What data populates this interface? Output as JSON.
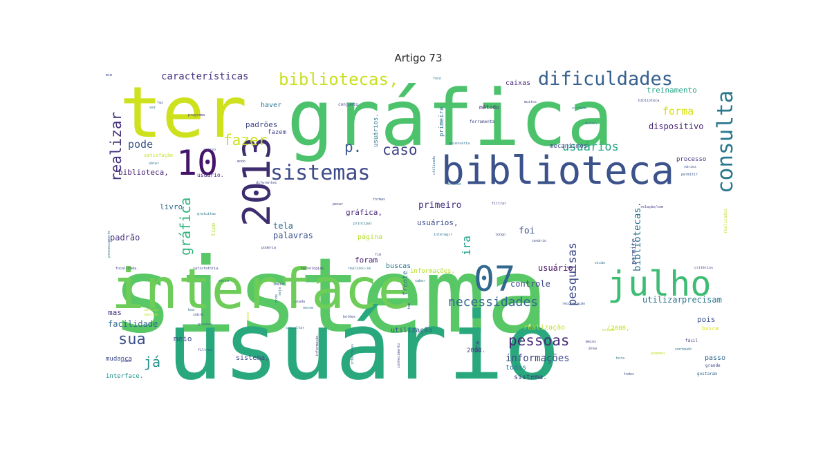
{
  "title": "Artigo 73",
  "colors": {
    "background": "#ffffff",
    "title": "#222222",
    "palette": "viridis"
  },
  "words": [
    {
      "text": "sistema",
      "weight": 1.0,
      "color": "#58c765",
      "vertical": false
    },
    {
      "text": "usuário",
      "weight": 0.95,
      "color": "#29a87d",
      "vertical": false
    },
    {
      "text": "gráfica",
      "weight": 0.72,
      "color": "#4cc26c",
      "vertical": false
    },
    {
      "text": "ter",
      "weight": 0.6,
      "color": "#cde11d",
      "vertical": false
    },
    {
      "text": "interface",
      "weight": 0.5,
      "color": "#6ecd58",
      "vertical": false
    },
    {
      "text": "biblioteca",
      "weight": 0.4,
      "color": "#3b528b",
      "vertical": false
    },
    {
      "text": "julho",
      "weight": 0.35,
      "color": "#3dbc74",
      "vertical": false
    },
    {
      "text": "07",
      "weight": 0.33,
      "color": "#31688e",
      "vertical": false
    },
    {
      "text": "2013",
      "weight": 0.33,
      "color": "#3e2d6e",
      "vertical": true
    },
    {
      "text": "10",
      "weight": 0.32,
      "color": "#44146a",
      "vertical": false
    },
    {
      "text": "consulta",
      "weight": 0.24,
      "color": "#2a788e",
      "vertical": true
    },
    {
      "text": "sistemas",
      "weight": 0.21,
      "color": "#3e4a89",
      "vertical": false
    },
    {
      "text": "dificuldades",
      "weight": 0.2,
      "color": "#355f8d",
      "vertical": false
    },
    {
      "text": "bibliotecas,",
      "weight": 0.18,
      "color": "#c8e020",
      "vertical": false
    },
    {
      "text": "necessidades",
      "weight": 0.14,
      "color": "#31688e",
      "vertical": false
    },
    {
      "text": "fazer",
      "weight": 0.15,
      "color": "#cfe11c",
      "vertical": false
    },
    {
      "text": "realizar",
      "weight": 0.15,
      "color": "#46327e",
      "vertical": true
    },
    {
      "text": "gráfica",
      "weight": 0.14,
      "color": "#2fb47c",
      "vertical": true
    },
    {
      "text": "caso",
      "weight": 0.14,
      "color": "#414487",
      "vertical": false
    },
    {
      "text": "pessoas",
      "weight": 0.14,
      "color": "#472a7a",
      "vertical": false
    },
    {
      "text": "sua",
      "weight": 0.15,
      "color": "#3b528b",
      "vertical": false
    },
    {
      "text": "já",
      "weight": 0.13,
      "color": "#21918c",
      "vertical": false
    },
    {
      "text": "p.",
      "weight": 0.13,
      "color": "#39568c",
      "vertical": false
    },
    {
      "text": "pesquisas",
      "weight": 0.12,
      "color": "#3e4a89",
      "vertical": true
    },
    {
      "text": "usuários",
      "weight": 0.12,
      "color": "#21a585",
      "vertical": false
    },
    {
      "text": "forma",
      "weight": 0.11,
      "color": "#d8e219",
      "vertical": false
    },
    {
      "text": "pode",
      "weight": 0.11,
      "color": "#3a538b",
      "vertical": false
    },
    {
      "text": "características",
      "weight": 0.1,
      "color": "#46337f",
      "vertical": false
    },
    {
      "text": "ira",
      "weight": 0.1,
      "color": "#1f9e89",
      "vertical": true
    },
    {
      "text": "informações",
      "weight": 0.09,
      "color": "#3e4989",
      "vertical": false
    },
    {
      "text": "bibliotecas.",
      "weight": 0.08,
      "color": "#2c728e",
      "vertical": true
    },
    {
      "text": "dispositivo",
      "weight": 0.07,
      "color": "#482475",
      "vertical": false
    },
    {
      "text": "primeiro",
      "weight": 0.07,
      "color": "#46337f",
      "vertical": false
    },
    {
      "text": "usuário,",
      "weight": 0.07,
      "color": "#471063",
      "vertical": false
    },
    {
      "text": "controle",
      "weight": 0.07,
      "color": "#404688",
      "vertical": false
    },
    {
      "text": "utilizar",
      "weight": 0.07,
      "color": "#2d708e",
      "vertical": false
    },
    {
      "text": "precisam",
      "weight": 0.07,
      "color": "#2a788e",
      "vertical": false
    },
    {
      "text": "facilidade",
      "weight": 0.07,
      "color": "#31688e",
      "vertical": false
    },
    {
      "text": "padrão",
      "weight": 0.07,
      "color": "#46327e",
      "vertical": false
    },
    {
      "text": "palavras",
      "weight": 0.07,
      "color": "#3b528b",
      "vertical": false
    },
    {
      "text": "tela",
      "weight": 0.07,
      "color": "#31688e",
      "vertical": false
    },
    {
      "text": "padrões",
      "weight": 0.07,
      "color": "#404688",
      "vertical": false
    },
    {
      "text": "usuários,",
      "weight": 0.07,
      "color": "#3e4a89",
      "vertical": false
    },
    {
      "text": "gráfica,",
      "weight": 0.07,
      "color": "#482777",
      "vertical": false
    },
    {
      "text": "foi",
      "weight": 0.07,
      "color": "#3b528b",
      "vertical": false
    },
    {
      "text": "página",
      "weight": 0.06,
      "color": "#b4de2c",
      "vertical": false
    },
    {
      "text": "foram",
      "weight": 0.06,
      "color": "#482071",
      "vertical": false
    },
    {
      "text": "biblioteca,",
      "weight": 0.06,
      "color": "#482475",
      "vertical": false
    },
    {
      "text": "livro",
      "weight": 0.06,
      "color": "#31688e",
      "vertical": false
    },
    {
      "text": "sistema,",
      "weight": 0.06,
      "color": "#3e4a89",
      "vertical": false
    },
    {
      "text": "sistema.",
      "weight": 0.06,
      "color": "#46337f",
      "vertical": false
    },
    {
      "text": "meio",
      "weight": 0.06,
      "color": "#3e4a89",
      "vertical": false
    },
    {
      "text": "mas",
      "weight": 0.06,
      "color": "#46337f",
      "vertical": false
    },
    {
      "text": "pois",
      "weight": 0.06,
      "color": "#3b528b",
      "vertical": false
    },
    {
      "text": "passo",
      "weight": 0.06,
      "color": "#31688e",
      "vertical": false
    },
    {
      "text": "todas",
      "weight": 0.06,
      "color": "#2c728e",
      "vertical": false
    },
    {
      "text": "realização",
      "weight": 0.06,
      "color": "#c2df23",
      "vertical": false
    },
    {
      "text": "treinamento",
      "weight": 0.06,
      "color": "#20a486",
      "vertical": false
    },
    {
      "text": "caixas",
      "weight": 0.05,
      "color": "#472c7a",
      "vertical": false
    },
    {
      "text": "haver",
      "weight": 0.05,
      "color": "#2c728e",
      "vertical": false
    },
    {
      "text": "fazem",
      "weight": 0.05,
      "color": "#404688",
      "vertical": false
    },
    {
      "text": "mecanismos",
      "weight": 0.05,
      "color": "#3e4a89",
      "vertical": false
    },
    {
      "text": "processo",
      "weight": 0.05,
      "color": "#46337f",
      "vertical": false
    },
    {
      "text": "método",
      "weight": 0.05,
      "color": "#482677",
      "vertical": false
    },
    {
      "text": "buscas",
      "weight": 0.05,
      "color": "#2a788e",
      "vertical": false
    },
    {
      "text": "interface.",
      "weight": 0.05,
      "color": "#1f968b",
      "vertical": false
    },
    {
      "text": "mudança",
      "weight": 0.05,
      "color": "#3e4a89",
      "vertical": false
    },
    {
      "text": "utilização",
      "weight": 0.05,
      "color": "#3b528b",
      "vertical": false
    },
    {
      "text": "usuário.",
      "weight": 0.05,
      "color": "#482475",
      "vertical": false
    },
    {
      "text": "informações,",
      "weight": 0.05,
      "color": "#b8de29",
      "vertical": false
    },
    {
      "text": "frente",
      "weight": 0.05,
      "color": "#2c728e",
      "vertical": true
    },
    {
      "text": "(2008,",
      "weight": 0.05,
      "color": "#c2df23",
      "vertical": false
    },
    {
      "text": "2008.",
      "weight": 0.05,
      "color": "#46337f",
      "vertical": false
    },
    {
      "text": "pra",
      "weight": 0.05,
      "color": "#3e4a89",
      "vertical": true
    },
    {
      "text": "permite",
      "weight": 0.04,
      "color": "#3b528b",
      "vertical": true
    },
    {
      "text": "primeira",
      "weight": 0.04,
      "color": "#2c728e",
      "vertical": true
    },
    {
      "text": "usuários.",
      "weight": 0.04,
      "color": "#2c728e",
      "vertical": true
    },
    {
      "text": "tipo",
      "weight": 0.04,
      "color": "#b4de2c",
      "vertical": true
    },
    {
      "text": "busca",
      "weight": 0.04,
      "color": "#dde318",
      "vertical": false
    },
    {
      "text": "fácil",
      "weight": 0.04,
      "color": "#46337f",
      "vertical": false
    },
    {
      "text": "grande",
      "weight": 0.04,
      "color": "#3e4a89",
      "vertical": false
    },
    {
      "text": "gostaram",
      "weight": 0.04,
      "color": "#31688e",
      "vertical": false
    },
    {
      "text": "realizados",
      "weight": 0.04,
      "color": "#c2df23",
      "vertical": true
    },
    {
      "text": "conjunto",
      "weight": 0.03,
      "color": "#3e4a89",
      "vertical": false
    },
    {
      "text": "ferramenta",
      "weight": 0.03,
      "color": "#404688",
      "vertical": false
    },
    {
      "text": "necessária",
      "weight": 0.03,
      "color": "#2c728e",
      "vertical": false
    },
    {
      "text": "diferentes",
      "weight": 0.03,
      "color": "#404688",
      "vertical": false
    },
    {
      "text": "programa",
      "weight": 0.03,
      "color": "#46337f",
      "vertical": false
    },
    {
      "text": "satisfação",
      "weight": 0.03,
      "color": "#c2df23",
      "vertical": false
    },
    {
      "text": "muitos",
      "weight": 0.03,
      "color": "#3e4a89",
      "vertical": false
    },
    {
      "text": "virtude",
      "weight": 0.03,
      "color": "#2a788e",
      "vertical": false
    },
    {
      "text": "biblioteca.",
      "weight": 0.03,
      "color": "#3e4a89",
      "vertical": false
    },
    {
      "text": "disso,",
      "weight": 0.03,
      "color": "#31688e",
      "vertical": false
    },
    {
      "text": "vários",
      "weight": 0.03,
      "color": "#3b528b",
      "vertical": false
    },
    {
      "text": "permitir",
      "weight": 0.03,
      "color": "#3b528b",
      "vertical": false
    },
    {
      "text": "principal",
      "weight": 0.03,
      "color": "#2c728e",
      "vertical": false
    },
    {
      "text": "interagir",
      "weight": 0.03,
      "color": "#2c728e",
      "vertical": false
    },
    {
      "text": "longo",
      "weight": 0.03,
      "color": "#3e4a89",
      "vertical": false
    },
    {
      "text": "cenário",
      "weight": 0.03,
      "color": "#3e4a89",
      "vertical": false
    },
    {
      "text": "relação/com",
      "weight": 0.03,
      "color": "#46337f",
      "vertical": false
    },
    {
      "text": "critérios",
      "weight": 0.03,
      "color": "#404688",
      "vertical": false
    },
    {
      "text": "tecnologias",
      "weight": 0.03,
      "color": "#46337f",
      "vertical": false
    },
    {
      "text": "realizou-se",
      "weight": 0.03,
      "color": "#2c728e",
      "vertical": false
    },
    {
      "text": "saber",
      "weight": 0.03,
      "color": "#2c728e",
      "vertical": false
    },
    {
      "text": "recuperação",
      "weight": 0.03,
      "color": "#3b528b",
      "vertical": false
    },
    {
      "text": "conhecimento",
      "weight": 0.03,
      "color": "#404688",
      "vertical": true
    },
    {
      "text": "informação.",
      "weight": 0.03,
      "color": "#46337f",
      "vertical": true
    },
    {
      "text": "interfaces",
      "weight": 0.03,
      "color": "#2c728e",
      "vertical": true
    },
    {
      "text": "consultar",
      "weight": 0.03,
      "color": "#2c728e",
      "vertical": false
    },
    {
      "text": "botões",
      "weight": 0.03,
      "color": "#3e4a89",
      "vertical": false
    },
    {
      "text": "filtrar",
      "weight": 0.03,
      "color": "#404688",
      "vertical": false
    },
    {
      "text": "filtros",
      "weight": 0.03,
      "color": "#3e4a89",
      "vertical": false
    },
    {
      "text": "pesar",
      "weight": 0.03,
      "color": "#46337f",
      "vertical": false
    },
    {
      "text": "formas",
      "weight": 0.03,
      "color": "#3e4a89",
      "vertical": false
    },
    {
      "text": "divisão",
      "weight": 0.03,
      "color": "#2c728e",
      "vertical": false
    },
    {
      "text": "poderia",
      "weight": 0.03,
      "color": "#3e4a89",
      "vertical": false
    },
    {
      "text": "gratuitas",
      "weight": 0.03,
      "color": "#2c728e",
      "vertical": false
    },
    {
      "text": "satisfatória.",
      "weight": 0.03,
      "color": "#404688",
      "vertical": false
    },
    {
      "text": "focalizada.",
      "weight": 0.03,
      "color": "#404688",
      "vertical": false
    },
    {
      "text": "processamento",
      "weight": 0.03,
      "color": "#2c728e",
      "vertical": true
    },
    {
      "text": "utilizado",
      "weight": 0.03,
      "color": "#2c728e",
      "vertical": true
    },
    {
      "text": "podem",
      "weight": 0.03,
      "color": "#3e4a89",
      "vertical": false
    },
    {
      "text": "todos",
      "weight": 0.03,
      "color": "#3e4a89",
      "vertical": false
    },
    {
      "text": "conteúdo",
      "weight": 0.03,
      "color": "#2c728e",
      "vertical": false
    },
    {
      "text": "podemos",
      "weight": 0.03,
      "color": "#c2df23",
      "vertical": false
    },
    {
      "text": "visão",
      "weight": 0.03,
      "color": "#2c728e",
      "vertical": false
    },
    {
      "text": "bora",
      "weight": 0.03,
      "color": "#2a788e",
      "vertical": false
    },
    {
      "text": "fim",
      "weight": 0.03,
      "color": "#404688",
      "vertical": false
    },
    {
      "text": "faz",
      "weight": 0.03,
      "color": "#3e4a89",
      "vertical": false
    },
    {
      "text": "vez",
      "weight": 0.03,
      "color": "#2c728e",
      "vertical": false
    },
    {
      "text": "foco",
      "weight": 0.03,
      "color": "#2c728e",
      "vertical": false
    },
    {
      "text": "mim",
      "weight": 0.03,
      "color": "#3e4a89",
      "vertical": false
    },
    {
      "text": "dá",
      "weight": 0.03,
      "color": "#404688",
      "vertical": false
    },
    {
      "text": "boa",
      "weight": 0.03,
      "color": "#2c728e",
      "vertical": false
    },
    {
      "text": "sobre",
      "weight": 0.03,
      "color": "#3e4a89",
      "vertical": false
    },
    {
      "text": "grandes",
      "weight": 0.03,
      "color": "#2c728e",
      "vertical": false
    },
    {
      "text": "obter",
      "weight": 0.03,
      "color": "#2c728e",
      "vertical": false
    },
    {
      "text": "acesso",
      "weight": 0.03,
      "color": "#404688",
      "vertical": false
    },
    {
      "text": "modo",
      "weight": 0.03,
      "color": "#3e4a89",
      "vertical": false
    },
    {
      "text": "certa",
      "weight": 0.03,
      "color": "#2c728e",
      "vertical": false
    },
    {
      "text": "serviço",
      "weight": 0.03,
      "color": "#c2df23",
      "vertical": false
    },
    {
      "text": "sentido",
      "weight": 0.03,
      "color": "#c2df23",
      "vertical": false
    },
    {
      "text": "ideia",
      "weight": 0.03,
      "color": "#404688",
      "vertical": false
    },
    {
      "text": "usada",
      "weight": 0.03,
      "color": "#3e4a89",
      "vertical": false
    },
    {
      "text": "nesse",
      "weight": 0.03,
      "color": "#2c728e",
      "vertical": false
    },
    {
      "text": "estudo",
      "weight": 0.03,
      "color": "#c2df23",
      "vertical": false
    },
    {
      "text": "meios",
      "weight": 0.03,
      "color": "#46337f",
      "vertical": false
    },
    {
      "text": "área",
      "weight": 0.03,
      "color": "#404688",
      "vertical": false
    },
    {
      "text": "tem",
      "weight": 0.03,
      "color": "#3e4a89",
      "vertical": true
    },
    {
      "text": "site",
      "weight": 0.03,
      "color": "#c2df23",
      "vertical": true
    },
    {
      "text": "onde",
      "weight": 0.03,
      "color": "#2c728e",
      "vertical": true
    },
    {
      "text": "seja",
      "weight": 0.03,
      "color": "#2c728e",
      "vertical": true
    }
  ]
}
